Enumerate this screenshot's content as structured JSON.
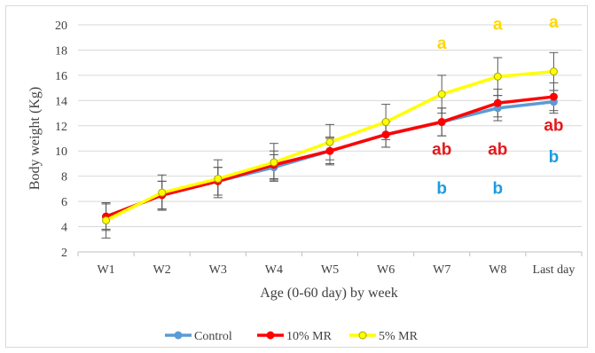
{
  "chart_data": {
    "type": "line",
    "categories": [
      "W1",
      "W2",
      "W3",
      "W4",
      "W5",
      "W6",
      "W7",
      "W8",
      "Last day"
    ],
    "xlabel": "Age (0-60 day) by week",
    "ylabel": "Body weight (Kg)",
    "ylim": [
      2,
      20
    ],
    "yticks": [
      2,
      4,
      6,
      8,
      10,
      12,
      14,
      16,
      18,
      20
    ],
    "grid": true,
    "legend_position": "bottom",
    "series": [
      {
        "name": "Control",
        "color": "#5b9bd5",
        "values": [
          4.8,
          6.5,
          7.6,
          8.7,
          10.0,
          11.3,
          12.3,
          13.4,
          13.9
        ],
        "errors": [
          1.0,
          1.1,
          1.1,
          1.0,
          1.0,
          1.0,
          1.1,
          1.0,
          0.9
        ]
      },
      {
        "name": "10% MR",
        "color": "#ff0000",
        "values": [
          4.8,
          6.5,
          7.6,
          8.9,
          10.0,
          11.3,
          12.3,
          13.8,
          14.3
        ],
        "errors": [
          1.1,
          1.1,
          1.1,
          1.1,
          1.1,
          1.0,
          1.1,
          1.1,
          1.1
        ]
      },
      {
        "name": "5% MR",
        "color": "#ffff00",
        "values": [
          4.5,
          6.7,
          7.8,
          9.1,
          10.7,
          12.3,
          14.5,
          15.9,
          16.3
        ],
        "errors": [
          1.4,
          1.4,
          1.5,
          1.5,
          1.4,
          1.4,
          1.5,
          1.5,
          1.5
        ]
      }
    ],
    "annotations": [
      {
        "category": "W7",
        "text": "a",
        "color": "#ffd700",
        "y": 18.1
      },
      {
        "category": "W8",
        "text": "a",
        "color": "#ffd700",
        "y": 19.6
      },
      {
        "category": "Last day",
        "text": "a",
        "color": "#ffd700",
        "y": 19.8
      },
      {
        "category": "W7",
        "text": "ab",
        "color": "#e31a1c",
        "y": 9.7
      },
      {
        "category": "W8",
        "text": "ab",
        "color": "#e31a1c",
        "y": 9.7
      },
      {
        "category": "Last day",
        "text": "ab",
        "color": "#e31a1c",
        "y": 11.6
      },
      {
        "category": "W7",
        "text": "b",
        "color": "#1e9be0",
        "y": 6.6
      },
      {
        "category": "W8",
        "text": "b",
        "color": "#1e9be0",
        "y": 6.6
      },
      {
        "category": "Last day",
        "text": "b",
        "color": "#1e9be0",
        "y": 9.1
      }
    ]
  }
}
